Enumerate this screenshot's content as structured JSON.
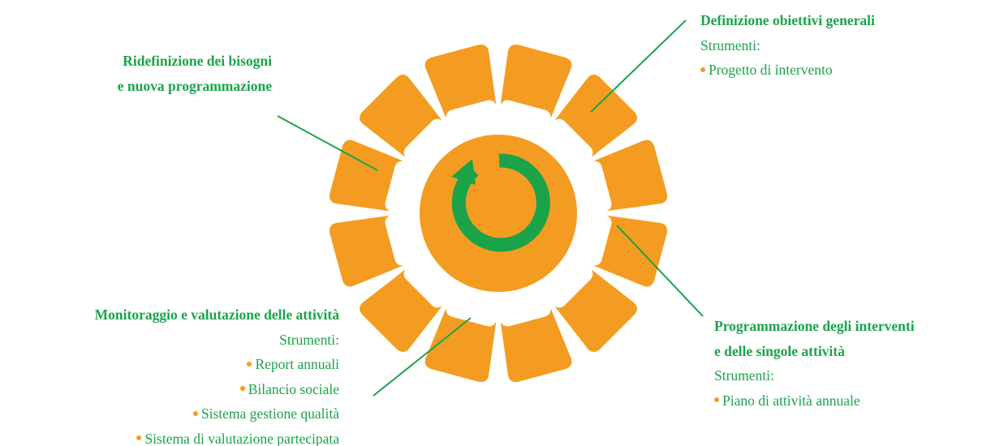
{
  "blocks": [
    {
      "title": [
        "Ridefinizione dei bisogni",
        "e nuova programmazione"
      ]
    },
    {
      "title": [
        "Definizione obiettivi generali"
      ],
      "subtitle": "Strumenti:",
      "items": [
        "Progetto di intervento"
      ]
    },
    {
      "title": [
        "Monitoraggio e valutazione delle attività"
      ],
      "subtitle": "Strumenti:",
      "items": [
        "Report annuali",
        "Bilancio sociale",
        "Sistema gestione qualità",
        "Sistema di valutazione partecipata"
      ]
    },
    {
      "title": [
        "Programmazione degli interventi",
        "e delle singole attività"
      ],
      "subtitle": "Strumenti:",
      "items": [
        "Piano di attività annuale"
      ]
    }
  ]
}
